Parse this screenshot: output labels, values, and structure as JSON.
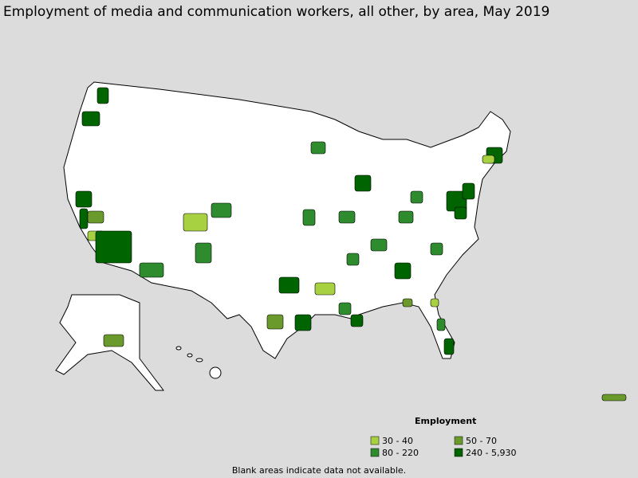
{
  "title": "Employment of media and communication workers, all other, by area, May 2019",
  "legend": {
    "title": "Employment",
    "entries": [
      {
        "label": "30 - 40",
        "color": "#a8d142"
      },
      {
        "label": "50 - 70",
        "color": "#6b9a2c"
      },
      {
        "label": "80 - 220",
        "color": "#2e8b2e"
      },
      {
        "label": "240 - 5,930",
        "color": "#006400"
      }
    ]
  },
  "footnote": "Blank areas indicate data not available."
}
